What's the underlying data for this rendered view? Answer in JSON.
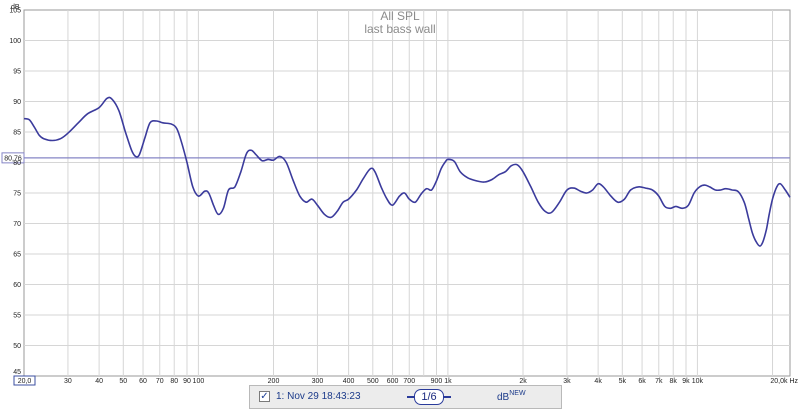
{
  "chart_data": {
    "type": "line",
    "title": "All SPL",
    "subtitle": "last bass wall",
    "y_unit": "dB",
    "x_unit": "Hz",
    "x_scale": "log",
    "xlim": [
      20,
      20000
    ],
    "ylim": [
      45,
      105
    ],
    "grid": true,
    "y_ticks": [
      105,
      100,
      95,
      90,
      85,
      80,
      75,
      70,
      65,
      60,
      55,
      50,
      45
    ],
    "x_ticks": [
      {
        "v": 30,
        "label": "30"
      },
      {
        "v": 40,
        "label": "40"
      },
      {
        "v": 50,
        "label": "50"
      },
      {
        "v": 60,
        "label": "60"
      },
      {
        "v": 70,
        "label": "70"
      },
      {
        "v": 80,
        "label": "80"
      },
      {
        "v": 90,
        "label": "90"
      },
      {
        "v": 100,
        "label": "100"
      },
      {
        "v": 200,
        "label": "200"
      },
      {
        "v": 300,
        "label": "300"
      },
      {
        "v": 400,
        "label": "400"
      },
      {
        "v": 500,
        "label": "500"
      },
      {
        "v": 600,
        "label": "600"
      },
      {
        "v": 700,
        "label": "700"
      },
      {
        "v": 900,
        "label": "900"
      },
      {
        "v": 1000,
        "label": "1k"
      },
      {
        "v": 2000,
        "label": "2k"
      },
      {
        "v": 3000,
        "label": "3k"
      },
      {
        "v": 4000,
        "label": "4k"
      },
      {
        "v": 5000,
        "label": "5k"
      },
      {
        "v": 6000,
        "label": "6k"
      },
      {
        "v": 7000,
        "label": "7k"
      },
      {
        "v": 8000,
        "label": "8k"
      },
      {
        "v": 9000,
        "label": "9k"
      },
      {
        "v": 10000,
        "label": "10k"
      },
      {
        "v": 20000,
        "label": "20,0k Hz"
      }
    ],
    "x_start_label": "20,0",
    "y_start_label": "45",
    "reference_line": {
      "value": 80.76,
      "label": "80,76"
    },
    "series": [
      {
        "name": "1: Nov 29 18:43:23",
        "color": "#3b3b9c",
        "points": [
          [
            20,
            87.2
          ],
          [
            21,
            87.0
          ],
          [
            22,
            85.8
          ],
          [
            23,
            84.5
          ],
          [
            24,
            83.9
          ],
          [
            26,
            83.6
          ],
          [
            28,
            83.9
          ],
          [
            30,
            84.8
          ],
          [
            33,
            86.5
          ],
          [
            36,
            88.0
          ],
          [
            40,
            89.0
          ],
          [
            43,
            90.5
          ],
          [
            45,
            90.4
          ],
          [
            48,
            88.5
          ],
          [
            51,
            85.0
          ],
          [
            54,
            82.0
          ],
          [
            56,
            81.0
          ],
          [
            58,
            81.3
          ],
          [
            61,
            84.0
          ],
          [
            64,
            86.5
          ],
          [
            68,
            86.8
          ],
          [
            72,
            86.5
          ],
          [
            78,
            86.3
          ],
          [
            82,
            85.5
          ],
          [
            86,
            83.0
          ],
          [
            90,
            80.0
          ],
          [
            95,
            76.0
          ],
          [
            100,
            74.5
          ],
          [
            106,
            75.3
          ],
          [
            110,
            75.0
          ],
          [
            115,
            73.0
          ],
          [
            120,
            71.5
          ],
          [
            126,
            72.5
          ],
          [
            132,
            75.5
          ],
          [
            140,
            76.0
          ],
          [
            148,
            78.5
          ],
          [
            156,
            81.5
          ],
          [
            163,
            82.0
          ],
          [
            170,
            81.3
          ],
          [
            180,
            80.3
          ],
          [
            190,
            80.5
          ],
          [
            200,
            80.4
          ],
          [
            212,
            81.0
          ],
          [
            225,
            80.0
          ],
          [
            240,
            77.0
          ],
          [
            255,
            74.5
          ],
          [
            270,
            73.5
          ],
          [
            285,
            74.0
          ],
          [
            300,
            73.0
          ],
          [
            320,
            71.5
          ],
          [
            340,
            71.0
          ],
          [
            360,
            72.0
          ],
          [
            380,
            73.5
          ],
          [
            400,
            74.0
          ],
          [
            430,
            75.5
          ],
          [
            460,
            77.5
          ],
          [
            490,
            79.0
          ],
          [
            510,
            78.5
          ],
          [
            540,
            76.0
          ],
          [
            570,
            74.0
          ],
          [
            600,
            73.0
          ],
          [
            640,
            74.5
          ],
          [
            670,
            75.0
          ],
          [
            700,
            74.0
          ],
          [
            740,
            73.5
          ],
          [
            780,
            74.8
          ],
          [
            820,
            75.7
          ],
          [
            860,
            75.5
          ],
          [
            900,
            77.0
          ],
          [
            940,
            79.0
          ],
          [
            980,
            80.2
          ],
          [
            1000,
            80.5
          ],
          [
            1060,
            80.2
          ],
          [
            1120,
            78.5
          ],
          [
            1200,
            77.5
          ],
          [
            1300,
            77.0
          ],
          [
            1400,
            76.8
          ],
          [
            1500,
            77.2
          ],
          [
            1600,
            78.0
          ],
          [
            1700,
            78.5
          ],
          [
            1800,
            79.5
          ],
          [
            1900,
            79.6
          ],
          [
            2000,
            78.5
          ],
          [
            2150,
            76.0
          ],
          [
            2300,
            73.5
          ],
          [
            2450,
            72.0
          ],
          [
            2600,
            71.8
          ],
          [
            2800,
            73.5
          ],
          [
            3000,
            75.5
          ],
          [
            3200,
            75.8
          ],
          [
            3400,
            75.3
          ],
          [
            3600,
            75.0
          ],
          [
            3800,
            75.5
          ],
          [
            4000,
            76.5
          ],
          [
            4200,
            76.0
          ],
          [
            4500,
            74.5
          ],
          [
            4800,
            73.5
          ],
          [
            5100,
            74.0
          ],
          [
            5400,
            75.5
          ],
          [
            5800,
            76.0
          ],
          [
            6200,
            75.8
          ],
          [
            6600,
            75.5
          ],
          [
            7000,
            74.5
          ],
          [
            7400,
            72.8
          ],
          [
            7800,
            72.5
          ],
          [
            8200,
            72.8
          ],
          [
            8700,
            72.5
          ],
          [
            9200,
            73.0
          ],
          [
            9700,
            75.0
          ],
          [
            10200,
            76.0
          ],
          [
            10700,
            76.3
          ],
          [
            11200,
            76.0
          ],
          [
            11800,
            75.5
          ],
          [
            12400,
            75.5
          ],
          [
            13000,
            75.7
          ],
          [
            13800,
            75.5
          ],
          [
            14600,
            75.2
          ],
          [
            15400,
            73.5
          ],
          [
            16000,
            71.0
          ],
          [
            16600,
            68.5
          ],
          [
            17200,
            67.0
          ],
          [
            17800,
            66.3
          ],
          [
            18300,
            67.0
          ],
          [
            18900,
            69.0
          ],
          [
            19400,
            71.5
          ],
          [
            20000,
            74.0
          ],
          [
            20800,
            76.0
          ],
          [
            21500,
            76.5
          ],
          [
            22500,
            75.5
          ],
          [
            23500,
            74.3
          ]
        ]
      }
    ]
  },
  "legend": {
    "checked": true,
    "check_glyph": "✓",
    "label": "1: Nov 29 18:43:23"
  },
  "smoothing": {
    "label": "1/6"
  },
  "units_selector": {
    "label": "dB",
    "badge": "NEW"
  }
}
